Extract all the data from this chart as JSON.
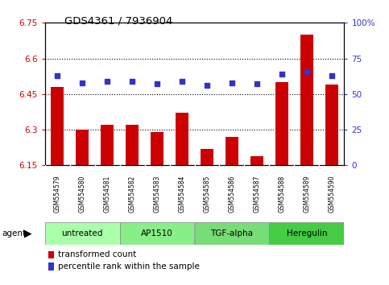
{
  "title": "GDS4361 / 7936904",
  "samples": [
    "GSM554579",
    "GSM554580",
    "GSM554581",
    "GSM554582",
    "GSM554583",
    "GSM554584",
    "GSM554585",
    "GSM554586",
    "GSM554587",
    "GSM554588",
    "GSM554589",
    "GSM554590"
  ],
  "transformed_count": [
    6.48,
    6.3,
    6.32,
    6.32,
    6.29,
    6.37,
    6.22,
    6.27,
    6.19,
    6.5,
    6.7,
    6.49
  ],
  "percentile_rank": [
    63,
    58,
    59,
    59,
    57,
    59,
    56,
    58,
    57,
    64,
    66,
    63
  ],
  "ylim_left": [
    6.15,
    6.75
  ],
  "ylim_right": [
    0,
    100
  ],
  "yticks_left": [
    6.15,
    6.3,
    6.45,
    6.6,
    6.75
  ],
  "ytick_labels_left": [
    "6.15",
    "6.3",
    "6.45",
    "6.6",
    "6.75"
  ],
  "yticks_right": [
    0,
    25,
    50,
    75,
    100
  ],
  "ytick_labels_right": [
    "0",
    "25",
    "50",
    "75",
    "100%"
  ],
  "bar_color": "#cc0000",
  "dot_color": "#3333cc",
  "agents": [
    {
      "label": "untreated",
      "start": 0,
      "end": 3,
      "color": "#aaffaa"
    },
    {
      "label": "AP1510",
      "start": 3,
      "end": 6,
      "color": "#88ee88"
    },
    {
      "label": "TGF-alpha",
      "start": 6,
      "end": 9,
      "color": "#77dd77"
    },
    {
      "label": "Heregulin",
      "start": 9,
      "end": 12,
      "color": "#44cc44"
    }
  ],
  "legend_items": [
    {
      "label": "transformed count",
      "color": "#cc0000"
    },
    {
      "label": "percentile rank within the sample",
      "color": "#3333cc"
    }
  ],
  "agent_label": "agent",
  "background_color": "#ffffff",
  "tick_area_color": "#cccccc",
  "bar_width": 0.5,
  "grid_lines": [
    6.3,
    6.45,
    6.6
  ]
}
